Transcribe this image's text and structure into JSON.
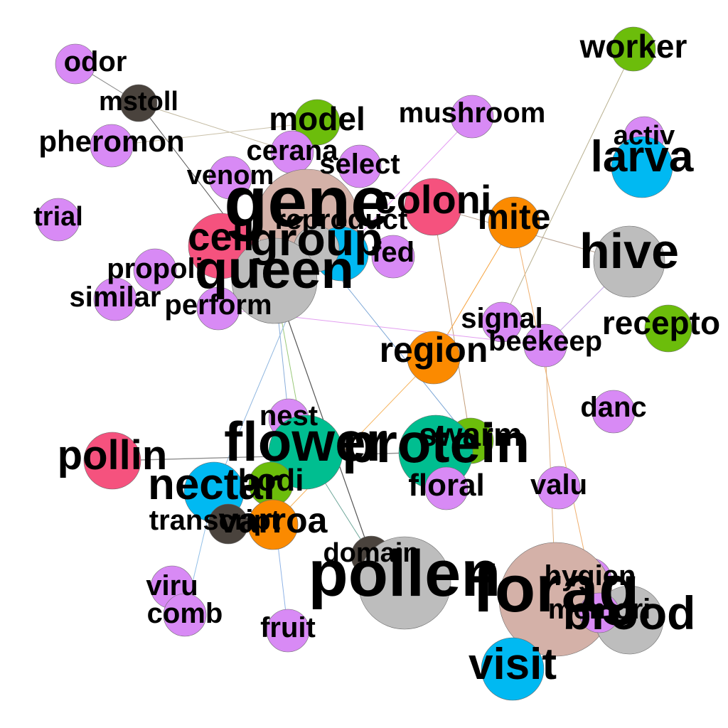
{
  "colors": {
    "violet": "#d88af5",
    "pink": "#f5527e",
    "orange": "#fb8a00",
    "green": "#6cbd0b",
    "teal": "#00be90",
    "cyan": "#00b9f2",
    "grey": "#bdbdbd",
    "rose": "#d4b1a8",
    "dark": "#4a433d"
  },
  "nodes": [
    {
      "id": "odor",
      "label": "odor",
      "color": "violet"
    },
    {
      "id": "mstoll",
      "label": "mstoll",
      "color": "dark"
    },
    {
      "id": "pheromon",
      "label": "pheromon",
      "color": "violet"
    },
    {
      "id": "model",
      "label": "model",
      "color": "green"
    },
    {
      "id": "mushroom",
      "label": "mushroom",
      "color": "violet"
    },
    {
      "id": "worker",
      "label": "worker",
      "color": "green"
    },
    {
      "id": "cerana",
      "label": "cerana",
      "color": "violet"
    },
    {
      "id": "select",
      "label": "select",
      "color": "violet"
    },
    {
      "id": "venom",
      "label": "venom",
      "color": "violet"
    },
    {
      "id": "activ",
      "label": "activ",
      "color": "violet"
    },
    {
      "id": "larva",
      "label": "larva",
      "color": "cyan"
    },
    {
      "id": "trial",
      "label": "trial",
      "color": "violet"
    },
    {
      "id": "gene",
      "label": "gene",
      "color": "rose"
    },
    {
      "id": "coloni",
      "label": "coloni",
      "color": "pink"
    },
    {
      "id": "mite",
      "label": "mite",
      "color": "orange"
    },
    {
      "id": "reproduct",
      "label": "reproduct",
      "color": "cyan"
    },
    {
      "id": "cell",
      "label": "cell",
      "color": "pink"
    },
    {
      "id": "group",
      "label": "group",
      "color": "grey"
    },
    {
      "id": "fed",
      "label": "fed",
      "color": "violet"
    },
    {
      "id": "hive",
      "label": "hive",
      "color": "grey"
    },
    {
      "id": "queen",
      "label": "queen",
      "color": "grey"
    },
    {
      "id": "propoli",
      "label": "propoli",
      "color": "violet"
    },
    {
      "id": "similar",
      "label": "similar",
      "color": "violet"
    },
    {
      "id": "perform",
      "label": "perform",
      "color": "violet"
    },
    {
      "id": "signal",
      "label": "signal",
      "color": "violet"
    },
    {
      "id": "recepto",
      "label": "recepto",
      "color": "green"
    },
    {
      "id": "beekeep",
      "label": "beekeep",
      "color": "violet"
    },
    {
      "id": "region",
      "label": "region",
      "color": "orange"
    },
    {
      "id": "danc",
      "label": "danc",
      "color": "violet"
    },
    {
      "id": "nest",
      "label": "nest",
      "color": "violet"
    },
    {
      "id": "flower",
      "label": "flower",
      "color": "teal"
    },
    {
      "id": "swarm",
      "label": "swarm",
      "color": "green"
    },
    {
      "id": "protein",
      "label": "protein",
      "color": "teal"
    },
    {
      "id": "pollin",
      "label": "pollin",
      "color": "pink"
    },
    {
      "id": "bodi",
      "label": "bodi",
      "color": "green"
    },
    {
      "id": "nectar",
      "label": "nectar",
      "color": "cyan"
    },
    {
      "id": "floral",
      "label": "floral",
      "color": "violet"
    },
    {
      "id": "valu",
      "label": "valu",
      "color": "violet"
    },
    {
      "id": "transcript",
      "label": "transcript",
      "color": "dark"
    },
    {
      "id": "varroa",
      "label": "varroa",
      "color": "orange"
    },
    {
      "id": "domain",
      "label": "domain",
      "color": "dark"
    },
    {
      "id": "pollen",
      "label": "pollen",
      "color": "grey"
    },
    {
      "id": "viru",
      "label": "viru",
      "color": "violet"
    },
    {
      "id": "hygien",
      "label": "hygien",
      "color": "violet"
    },
    {
      "id": "forag",
      "label": "forag",
      "color": "rose"
    },
    {
      "id": "brood",
      "label": "brood",
      "color": "grey"
    },
    {
      "id": "memori",
      "label": "memori",
      "color": "violet"
    },
    {
      "id": "comb",
      "label": "comb",
      "color": "violet"
    },
    {
      "id": "fruit",
      "label": "fruit",
      "color": "violet"
    },
    {
      "id": "visit",
      "label": "visit",
      "color": "cyan"
    }
  ],
  "edges": [
    {
      "source": "odor",
      "target": "mstoll"
    },
    {
      "source": "mstoll",
      "target": "cerana"
    },
    {
      "source": "mstoll",
      "target": "queen"
    },
    {
      "source": "pheromon",
      "target": "model"
    },
    {
      "source": "worker",
      "target": "signal"
    },
    {
      "source": "mushroom",
      "target": "reproduct"
    },
    {
      "source": "coloni",
      "target": "swarm"
    },
    {
      "source": "coloni",
      "target": "hive"
    },
    {
      "source": "mite",
      "target": "region"
    },
    {
      "source": "mite",
      "target": "hygien"
    },
    {
      "source": "beekeep",
      "target": "hive"
    },
    {
      "source": "beekeep",
      "target": "forag"
    },
    {
      "source": "perform",
      "target": "beekeep"
    },
    {
      "source": "queen",
      "target": "flower"
    },
    {
      "source": "queen",
      "target": "domain"
    },
    {
      "source": "queen",
      "target": "nest"
    },
    {
      "source": "group",
      "target": "swarm"
    },
    {
      "source": "group",
      "target": "nectar"
    },
    {
      "source": "pollin",
      "target": "protein"
    },
    {
      "source": "nectar",
      "target": "comb"
    },
    {
      "source": "bodi",
      "target": "fruit"
    },
    {
      "source": "flower",
      "target": "domain"
    },
    {
      "source": "region",
      "target": "varroa"
    }
  ]
}
